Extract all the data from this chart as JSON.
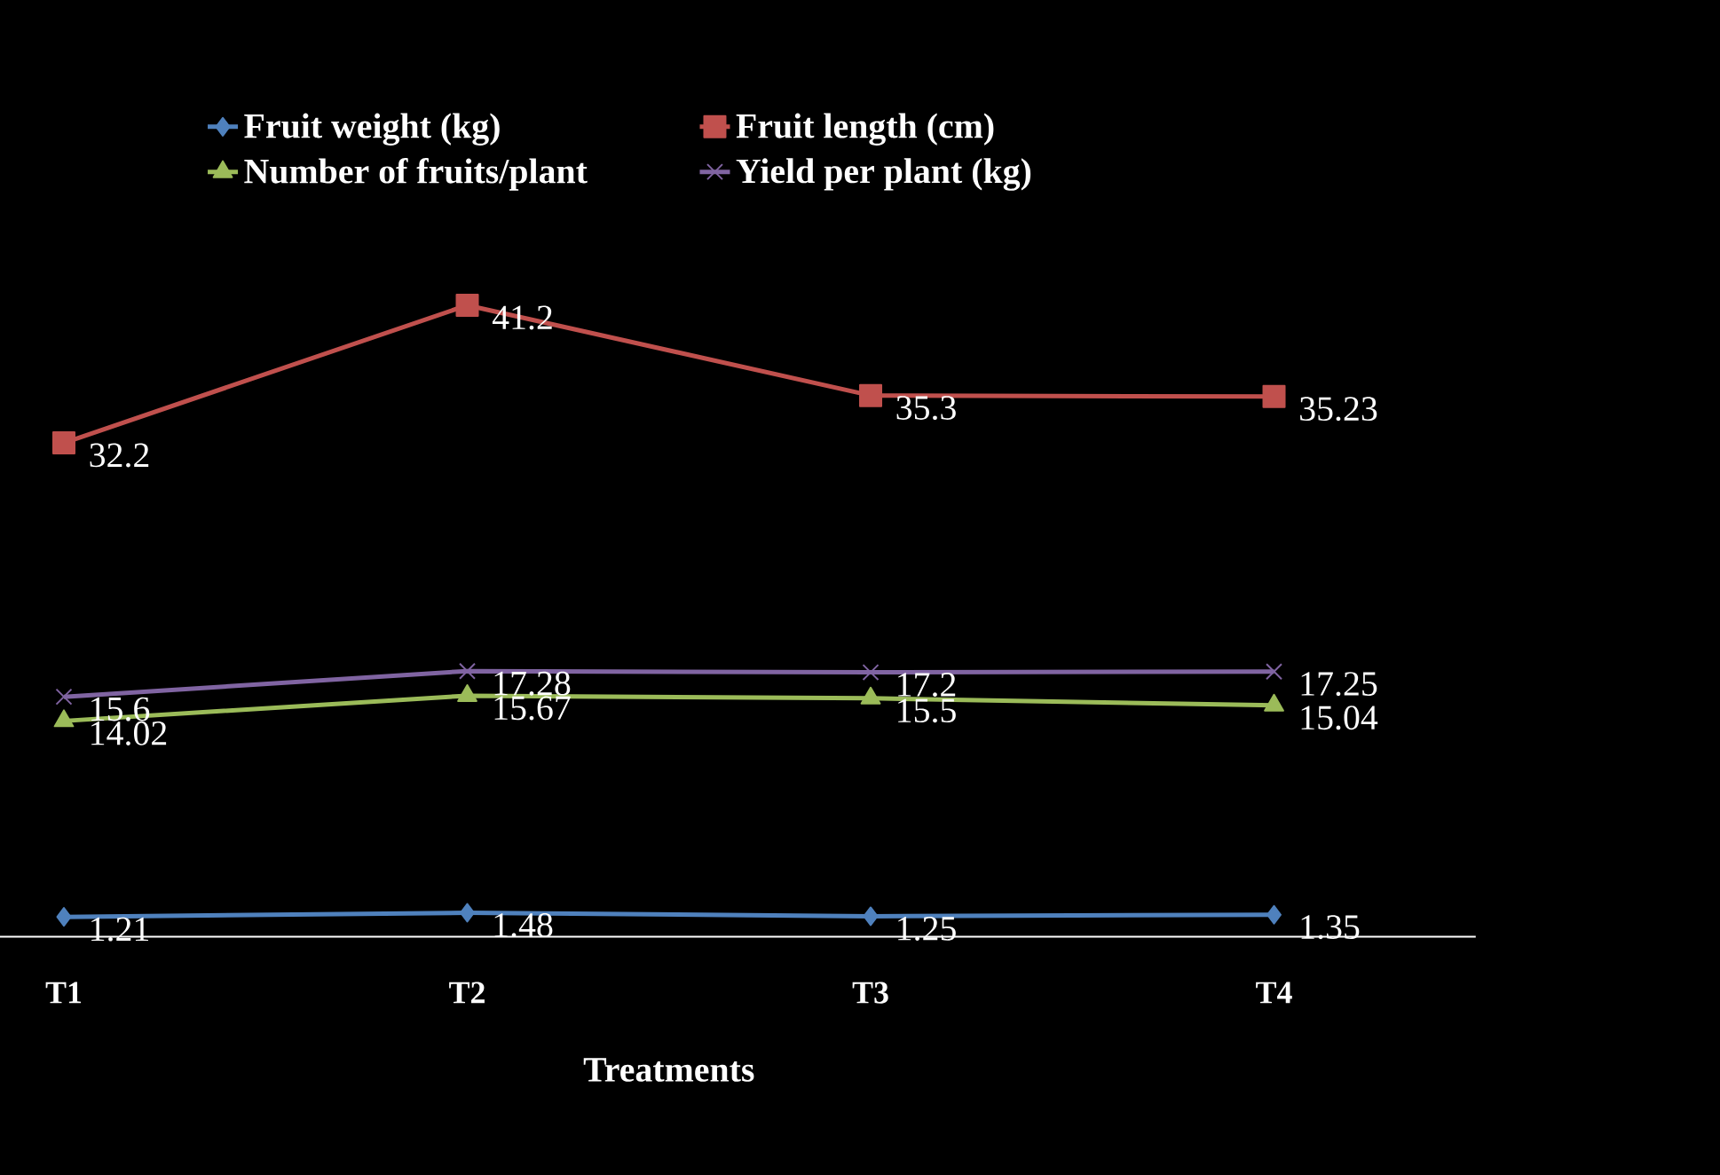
{
  "chart_data": {
    "type": "line",
    "xlabel": "Treatments",
    "categories": [
      "T1",
      "T2",
      "T3",
      "T4"
    ],
    "series": [
      {
        "name": "Fruit weight (kg)",
        "color": "#4f81bd",
        "marker": "diamond",
        "values": [
          1.21,
          1.48,
          1.25,
          1.35
        ]
      },
      {
        "name": "Fruit length (cm)",
        "color": "#c0504d",
        "marker": "square",
        "values": [
          32.2,
          41.2,
          35.3,
          35.23
        ]
      },
      {
        "name": "Number of fruits/plant",
        "color": "#9bbb59",
        "marker": "triangle",
        "values": [
          14.02,
          15.67,
          15.5,
          15.04
        ]
      },
      {
        "name": "Yield per plant (kg)",
        "color": "#8064a2",
        "marker": "cross",
        "values": [
          15.6,
          17.28,
          17.2,
          17.25
        ]
      }
    ],
    "tick_labels": "x",
    "data_labels": true,
    "legend": "top",
    "grid": false,
    "line_style": "solid"
  }
}
